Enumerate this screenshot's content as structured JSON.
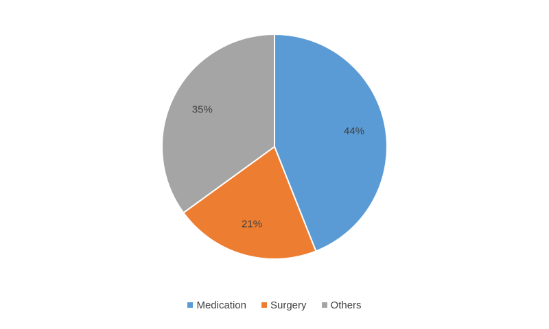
{
  "chart_data": {
    "type": "pie",
    "categories": [
      "Medication",
      "Surgery",
      "Others"
    ],
    "values": [
      44,
      21,
      35
    ],
    "data_labels": [
      "44%",
      "21%",
      "35%"
    ],
    "colors": [
      "#5b9bd5",
      "#ed7d31",
      "#a5a5a5"
    ],
    "start_angle": "12 o'clock",
    "direction": "clockwise",
    "legend_position": "bottom",
    "title": ""
  }
}
